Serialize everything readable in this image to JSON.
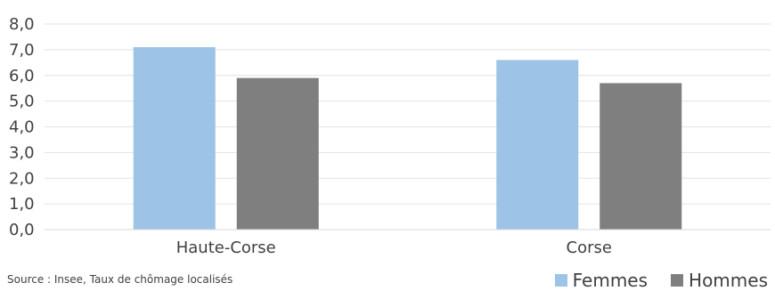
{
  "chart_data": {
    "type": "bar",
    "categories": [
      "Haute-Corse",
      "Corse"
    ],
    "series": [
      {
        "name": "Femmes",
        "values": [
          7.1,
          6.6
        ],
        "color": "#9DC3E6"
      },
      {
        "name": "Hommes",
        "values": [
          5.9,
          5.7
        ],
        "color": "#7F7F7F"
      }
    ],
    "ylim": [
      0,
      8
    ],
    "yticks": [
      "0,0",
      "1,0",
      "2,0",
      "3,0",
      "4,0",
      "5,0",
      "6,0",
      "7,0",
      "8,0"
    ],
    "grid": true,
    "legend_position": "bottom-right",
    "source": "Source : Insee, Taux de chômage localisés"
  }
}
